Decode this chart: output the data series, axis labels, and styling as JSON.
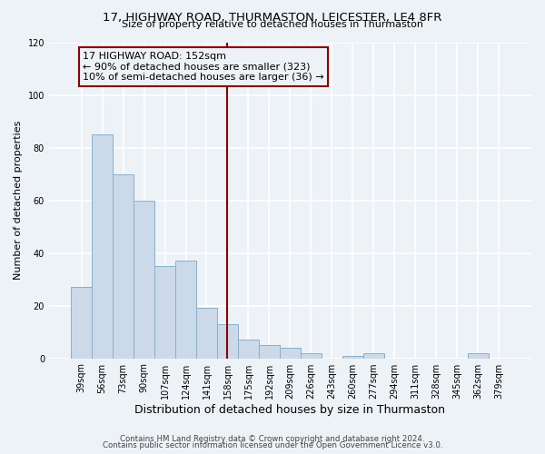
{
  "title1": "17, HIGHWAY ROAD, THURMASTON, LEICESTER, LE4 8FR",
  "title2": "Size of property relative to detached houses in Thurmaston",
  "xlabel": "Distribution of detached houses by size in Thurmaston",
  "ylabel": "Number of detached properties",
  "bar_labels": [
    "39sqm",
    "56sqm",
    "73sqm",
    "90sqm",
    "107sqm",
    "124sqm",
    "141sqm",
    "158sqm",
    "175sqm",
    "192sqm",
    "209sqm",
    "226sqm",
    "243sqm",
    "260sqm",
    "277sqm",
    "294sqm",
    "311sqm",
    "328sqm",
    "345sqm",
    "362sqm",
    "379sqm"
  ],
  "bar_values": [
    27,
    85,
    70,
    60,
    35,
    37,
    19,
    13,
    7,
    5,
    4,
    2,
    0,
    1,
    2,
    0,
    0,
    0,
    0,
    2,
    0
  ],
  "bar_color": "#ccd9e8",
  "bar_edge_color": "#8ab0cc",
  "vline_x": 7.0,
  "vline_color": "#8b0000",
  "annotation_title": "17 HIGHWAY ROAD: 152sqm",
  "annotation_line1": "← 90% of detached houses are smaller (323)",
  "annotation_line2": "10% of semi-detached houses are larger (36) →",
  "annotation_box_color": "#8b0000",
  "ylim": [
    0,
    120
  ],
  "yticks": [
    0,
    20,
    40,
    60,
    80,
    100,
    120
  ],
  "footer1": "Contains HM Land Registry data © Crown copyright and database right 2024.",
  "footer2": "Contains public sector information licensed under the Open Government Licence v3.0.",
  "bg_color": "#edf2f7"
}
